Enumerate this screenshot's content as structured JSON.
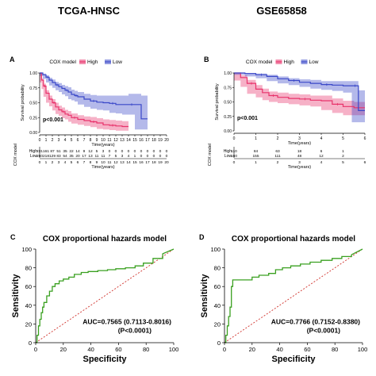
{
  "headers": {
    "left": "TCGA-HNSC",
    "right": "GSE65858"
  },
  "chart_data": [
    {
      "panel": "A",
      "type": "line",
      "subtype": "kaplan-meier",
      "legend": {
        "title": "COX model",
        "items": [
          "High",
          "Low"
        ],
        "colors": [
          "#e8336b",
          "#3a48c8"
        ],
        "placement": "top"
      },
      "ylabel": "Survival probability",
      "xlabel": "Time(years)",
      "xlim": [
        0,
        20
      ],
      "ylim": [
        0,
        1
      ],
      "xticks": [
        "0",
        "1",
        "2",
        "3",
        "4",
        "5",
        "6",
        "7",
        "8",
        "9",
        "10",
        "11",
        "12",
        "13",
        "14",
        "15",
        "16",
        "17",
        "18",
        "19",
        "20"
      ],
      "yticks": [
        "0.00",
        "0.25",
        "0.50",
        "0.75",
        "1.00"
      ],
      "pvalue": "p<0.001",
      "series": [
        {
          "name": "High",
          "color": "#e8336b",
          "x": [
            0,
            0.3,
            0.6,
            1,
            1.5,
            2,
            2.5,
            3,
            3.5,
            4,
            4.5,
            5,
            6,
            7,
            8,
            9,
            10,
            11,
            12,
            13,
            14
          ],
          "y": [
            1,
            0.88,
            0.78,
            0.66,
            0.56,
            0.5,
            0.43,
            0.38,
            0.35,
            0.31,
            0.29,
            0.25,
            0.22,
            0.2,
            0.18,
            0.16,
            0.13,
            0.12,
            0.11,
            0.1,
            0.1
          ],
          "ci_upper": [
            1,
            0.91,
            0.82,
            0.71,
            0.62,
            0.56,
            0.5,
            0.45,
            0.42,
            0.38,
            0.36,
            0.32,
            0.29,
            0.27,
            0.26,
            0.24,
            0.22,
            0.21,
            0.2,
            0.19,
            0.19
          ],
          "ci_lower": [
            1,
            0.84,
            0.73,
            0.6,
            0.5,
            0.44,
            0.37,
            0.31,
            0.28,
            0.24,
            0.22,
            0.18,
            0.15,
            0.13,
            0.11,
            0.09,
            0.06,
            0.05,
            0.04,
            0.03,
            0.03
          ]
        },
        {
          "name": "Low",
          "color": "#3a48c8",
          "x": [
            0,
            0.5,
            1,
            1.5,
            2,
            2.5,
            3,
            3.5,
            4,
            4.5,
            5,
            5.5,
            6,
            7,
            8,
            9,
            10,
            11,
            12,
            13,
            14,
            15,
            16,
            17
          ],
          "y": [
            1,
            0.97,
            0.93,
            0.88,
            0.84,
            0.8,
            0.77,
            0.74,
            0.71,
            0.68,
            0.64,
            0.62,
            0.6,
            0.56,
            0.53,
            0.51,
            0.5,
            0.49,
            0.47,
            0.47,
            0.47,
            0.47,
            0.23,
            0.23
          ],
          "ci_upper": [
            1,
            0.99,
            0.96,
            0.92,
            0.89,
            0.85,
            0.83,
            0.8,
            0.78,
            0.76,
            0.72,
            0.7,
            0.68,
            0.65,
            0.63,
            0.62,
            0.62,
            0.62,
            0.62,
            0.62,
            0.65,
            0.65,
            0.62,
            0.62
          ],
          "ci_lower": [
            1,
            0.95,
            0.9,
            0.84,
            0.79,
            0.75,
            0.71,
            0.68,
            0.64,
            0.61,
            0.56,
            0.54,
            0.52,
            0.47,
            0.43,
            0.4,
            0.38,
            0.37,
            0.33,
            0.32,
            0.3,
            0.3,
            0.05,
            0.05
          ]
        }
      ],
      "risk_table": {
        "ylabel": "COX model",
        "rows": [
          {
            "label": "High",
            "color": "#e8336b",
            "values": [
              "231",
              "161",
              "87",
              "51",
              "35",
              "22",
              "14",
              "9",
              "12",
              "5",
              "3",
              "0",
              "0",
              "0",
              "0",
              "0",
              "0",
              "0",
              "0",
              "0",
              "0"
            ]
          },
          {
            "label": "Low",
            "color": "#3a48c8",
            "values": [
              "260",
              "218",
              "129",
              "83",
              "54",
              "35",
              "20",
              "17",
              "13",
              "11",
              "11",
              "7",
              "5",
              "3",
              "4",
              "1",
              "0",
              "0",
              "0",
              "0",
              "0"
            ]
          }
        ],
        "xticks": [
          "0",
          "1",
          "2",
          "3",
          "4",
          "5",
          "6",
          "7",
          "8",
          "9",
          "10",
          "11",
          "12",
          "13",
          "14",
          "15",
          "16",
          "17",
          "18",
          "19",
          "20"
        ],
        "xlabel": "Time(years)"
      }
    },
    {
      "panel": "B",
      "type": "line",
      "subtype": "kaplan-meier",
      "legend": {
        "title": "COX model",
        "items": [
          "High",
          "Low"
        ],
        "colors": [
          "#e8336b",
          "#3a48c8"
        ],
        "placement": "top"
      },
      "ylabel": "Survival probability",
      "xlabel": "Time(years)",
      "xlim": [
        0,
        6
      ],
      "ylim": [
        0,
        1
      ],
      "xticks": [
        "0",
        "1",
        "2",
        "3",
        "4",
        "5",
        "6"
      ],
      "yticks": [
        "0.00",
        "0.25",
        "0.50",
        "0.75",
        "1.00"
      ],
      "pvalue": "p<0.001",
      "series": [
        {
          "name": "High",
          "color": "#e8336b",
          "x": [
            0,
            0.3,
            0.6,
            1,
            1.3,
            1.6,
            2,
            2.5,
            3,
            3.5,
            4,
            4.5,
            5,
            5.5,
            6
          ],
          "y": [
            1,
            0.92,
            0.82,
            0.72,
            0.66,
            0.61,
            0.58,
            0.56,
            0.55,
            0.53,
            0.52,
            0.46,
            0.42,
            0.4,
            0.4
          ],
          "ci_upper": [
            1,
            0.96,
            0.88,
            0.79,
            0.73,
            0.68,
            0.66,
            0.64,
            0.63,
            0.61,
            0.61,
            0.56,
            0.52,
            0.5,
            0.5
          ],
          "ci_lower": [
            1,
            0.87,
            0.76,
            0.64,
            0.58,
            0.53,
            0.5,
            0.48,
            0.46,
            0.44,
            0.42,
            0.36,
            0.31,
            0.27,
            0.27
          ]
        },
        {
          "name": "Low",
          "color": "#3a48c8",
          "x": [
            0,
            0.5,
            1,
            1.5,
            2,
            2.5,
            3,
            3.5,
            4,
            4.5,
            5,
            5.4,
            5.7,
            6
          ],
          "y": [
            1,
            0.99,
            0.97,
            0.94,
            0.9,
            0.87,
            0.84,
            0.82,
            0.8,
            0.79,
            0.78,
            0.78,
            0.35,
            0.35
          ],
          "ci_upper": [
            1,
            1,
            0.99,
            0.97,
            0.94,
            0.91,
            0.89,
            0.88,
            0.86,
            0.86,
            0.86,
            0.86,
            0.7,
            0.7
          ],
          "ci_lower": [
            1,
            0.97,
            0.94,
            0.91,
            0.86,
            0.82,
            0.79,
            0.76,
            0.73,
            0.71,
            0.69,
            0.66,
            0.15,
            0.15
          ]
        }
      ],
      "risk_table": {
        "ylabel": "COX model",
        "rows": [
          {
            "label": "High",
            "color": "#e8336b",
            "values": [
              "110",
              "84",
              "63",
              "18",
              "6",
              "1"
            ]
          },
          {
            "label": "Low",
            "color": "#3a48c8",
            "values": [
              "160",
              "155",
              "111",
              "48",
              "12",
              "2"
            ]
          }
        ],
        "xticks": [
          "0",
          "1",
          "2",
          "3",
          "4",
          "5",
          "6"
        ],
        "xlabel": "Time(years)"
      }
    },
    {
      "panel": "C",
      "type": "line",
      "subtype": "roc",
      "title": "COX proportional hazards model",
      "xlabel": "Specificity",
      "ylabel": "Sensitivity",
      "xlim": [
        0,
        100
      ],
      "ylim": [
        0,
        100
      ],
      "xticks": [
        "0",
        "20",
        "40",
        "60",
        "80",
        "100"
      ],
      "yticks": [
        "0",
        "20",
        "40",
        "60",
        "80",
        "100"
      ],
      "color": "#3aa020",
      "diagonal_color": "#d0302a",
      "annotation_line1": "AUC=0.7565 (0.7113-0.8016)",
      "annotation_line2": "(P<0.0001)",
      "x": [
        0,
        1,
        1,
        2,
        2,
        3,
        3,
        4,
        4,
        5,
        5,
        6,
        6,
        8,
        8,
        10,
        10,
        12,
        12,
        14,
        14,
        17,
        17,
        20,
        20,
        24,
        24,
        28,
        28,
        33,
        33,
        38,
        38,
        45,
        45,
        52,
        52,
        58,
        58,
        65,
        65,
        72,
        72,
        78,
        78,
        85,
        85,
        92,
        92,
        100
      ],
      "y": [
        0,
        0,
        8,
        8,
        18,
        18,
        25,
        25,
        32,
        32,
        38,
        38,
        43,
        43,
        50,
        50,
        55,
        55,
        60,
        60,
        63,
        63,
        66,
        66,
        68,
        68,
        70,
        70,
        73,
        73,
        75,
        75,
        76,
        76,
        77,
        77,
        78,
        78,
        79,
        79,
        80,
        80,
        82,
        82,
        85,
        85,
        90,
        90,
        95,
        100
      ]
    },
    {
      "panel": "D",
      "type": "line",
      "subtype": "roc",
      "title": "COX proportional hazards model",
      "xlabel": "Specificity",
      "ylabel": "Sensitivity",
      "xlim": [
        0,
        100
      ],
      "ylim": [
        0,
        100
      ],
      "xticks": [
        "0",
        "20",
        "40",
        "60",
        "80",
        "100"
      ],
      "yticks": [
        "0",
        "20",
        "40",
        "60",
        "80",
        "100"
      ],
      "color": "#3aa020",
      "diagonal_color": "#d0302a",
      "annotation_line1": "AUC=0.7766 (0.7152-0.8380)",
      "annotation_line2": "(P<0.0001)",
      "x": [
        0,
        1,
        1,
        2,
        2,
        3,
        3,
        4,
        4,
        5,
        5,
        6,
        6,
        20,
        20,
        25,
        25,
        32,
        32,
        37,
        37,
        42,
        42,
        48,
        48,
        55,
        55,
        62,
        62,
        70,
        70,
        78,
        78,
        85,
        85,
        92,
        92,
        100
      ],
      "y": [
        0,
        0,
        8,
        8,
        18,
        18,
        28,
        28,
        38,
        38,
        60,
        60,
        67,
        67,
        70,
        70,
        72,
        72,
        74,
        74,
        78,
        78,
        80,
        80,
        82,
        82,
        84,
        84,
        86,
        86,
        88,
        88,
        90,
        90,
        92,
        92,
        94,
        100
      ]
    }
  ]
}
